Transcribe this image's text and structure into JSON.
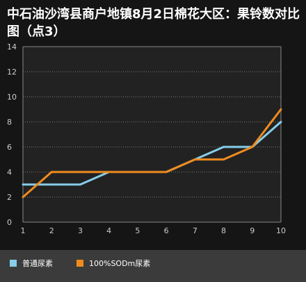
{
  "title": "中石油沙湾县商户地镇8月2日棉花大区：果铃数对比图（点3）",
  "colors": {
    "background": "#151515",
    "plot_background": "#222222",
    "series_blue": "#87ceeb",
    "series_orange": "#f08c1e",
    "grid": "#7a7a7a",
    "axis_text": "#cccccc",
    "legend_background": "#3b3b3b"
  },
  "chart_data": {
    "type": "line",
    "x": [
      1,
      2,
      3,
      4,
      5,
      6,
      7,
      8,
      9,
      10
    ],
    "xticks": [
      "1",
      "2",
      "3",
      "4",
      "5",
      "6",
      "7",
      "8",
      "9",
      "10"
    ],
    "yticks": [
      "0",
      "2",
      "4",
      "6",
      "8",
      "10",
      "12",
      "14"
    ],
    "ylim": [
      0,
      14
    ],
    "grid": true,
    "legend_position": "bottom",
    "series": [
      {
        "name": "普通尿素",
        "color": "#87ceeb",
        "values": [
          3,
          3,
          3,
          4,
          4,
          4,
          5,
          6,
          6,
          8
        ]
      },
      {
        "name": "100%SODm尿素",
        "color": "#f08c1e",
        "values": [
          2,
          4,
          4,
          4,
          4,
          4,
          5,
          5,
          6,
          9
        ]
      }
    ]
  }
}
